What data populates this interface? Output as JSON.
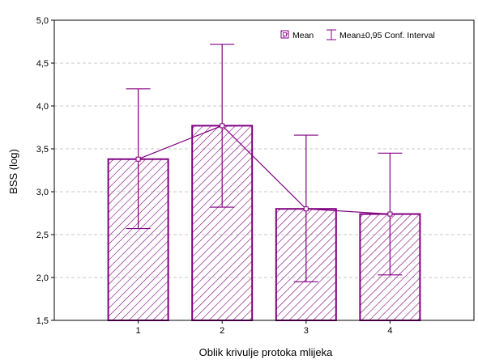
{
  "chart_data": {
    "type": "bar",
    "title": "",
    "xlabel": "Oblik krivulje protoka mlijeka",
    "ylabel": "BSS (log)",
    "categories": [
      "1",
      "2",
      "3",
      "4"
    ],
    "ylim": [
      1.5,
      5.0
    ],
    "yticks": [
      "1,5",
      "2,0",
      "2,5",
      "3,0",
      "3,5",
      "4,0",
      "4,5",
      "5,0"
    ],
    "grid": "horizontal dashed",
    "legend_position": "top-right",
    "series": [
      {
        "name": "Mean",
        "values": [
          3.38,
          3.77,
          2.8,
          2.74
        ],
        "ci_low": [
          2.57,
          2.82,
          1.95,
          2.03
        ],
        "ci_high": [
          4.2,
          4.72,
          3.66,
          3.45
        ]
      }
    ],
    "legend": {
      "mean_label": "Mean",
      "ci_label": "Mean±0,95 Conf. Interval"
    },
    "colors": {
      "series": "#800080",
      "grid": "#c8c8c8",
      "axis": "#000000"
    }
  }
}
